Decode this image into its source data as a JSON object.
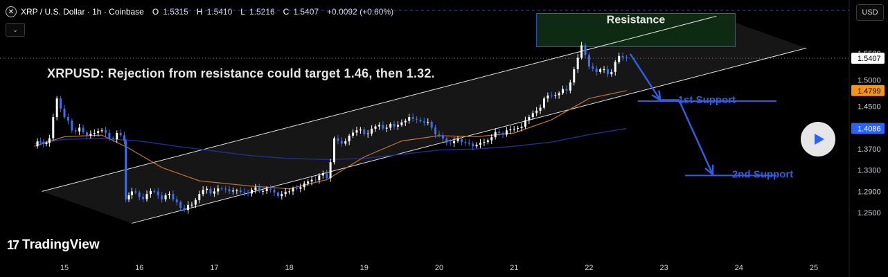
{
  "header": {
    "symbol_title": "XRP / U.S. Dollar · 1h · Coinbase",
    "open_label": "O",
    "open": "1.5315",
    "high_label": "H",
    "high": "1.5410",
    "low_label": "L",
    "low": "1.5216",
    "close_label": "C",
    "close": "1.5407",
    "change": "+0.0092 (+0.60%)"
  },
  "currency_button": "USD",
  "logo_text": "TradingView",
  "annotation": "XRPUSD: Rejection from resistance could target 1.46, then 1.32.",
  "colors": {
    "background": "#000000",
    "candle": "#3f6fe8",
    "ema_short": "#c0752e",
    "ema_long": "#1c2d8a",
    "annotation": "#2f5ee0",
    "resistance_box": "#0f2a12"
  },
  "chart_data": {
    "type": "candlestick",
    "x_ticks": [
      "15",
      "16",
      "17",
      "18",
      "19",
      "20",
      "21",
      "22",
      "23",
      "24",
      "25"
    ],
    "y_ticks": [
      "1.5500",
      "1.5000",
      "1.4500",
      "1.3700",
      "1.3300",
      "1.2900",
      "1.2500"
    ],
    "ylim": [
      1.22,
      1.59
    ],
    "price_tags": [
      {
        "value": 1.5407,
        "label": "1.5407",
        "kind": "last",
        "bg": "#ffffff",
        "fg": "#000000"
      },
      {
        "value": 1.4799,
        "label": "1.4799",
        "kind": "ema_short",
        "bg": "#f7931a",
        "fg": "#000000"
      },
      {
        "value": 1.4086,
        "label": "1.4086",
        "kind": "ema_long",
        "bg": "#2962ff",
        "fg": "#ffffff"
      }
    ],
    "close_path": [
      [
        14.6,
        1.375
      ],
      [
        14.8,
        1.39
      ],
      [
        14.9,
        1.465
      ],
      [
        15.0,
        1.43
      ],
      [
        15.1,
        1.405
      ],
      [
        15.2,
        1.41
      ],
      [
        15.3,
        1.395
      ],
      [
        15.4,
        1.4
      ],
      [
        15.5,
        1.405
      ],
      [
        15.6,
        1.39
      ],
      [
        15.7,
        1.4
      ],
      [
        15.8,
        1.385
      ],
      [
        15.82,
        1.275
      ],
      [
        15.9,
        1.29
      ],
      [
        16.0,
        1.28
      ],
      [
        16.1,
        1.285
      ],
      [
        16.2,
        1.29
      ],
      [
        16.3,
        1.275
      ],
      [
        16.4,
        1.285
      ],
      [
        16.5,
        1.27
      ],
      [
        16.6,
        1.255
      ],
      [
        16.7,
        1.265
      ],
      [
        16.8,
        1.285
      ],
      [
        16.9,
        1.295
      ],
      [
        17.0,
        1.29
      ],
      [
        17.1,
        1.295
      ],
      [
        17.2,
        1.29
      ],
      [
        17.3,
        1.292
      ],
      [
        17.4,
        1.288
      ],
      [
        17.5,
        1.293
      ],
      [
        17.6,
        1.29
      ],
      [
        17.7,
        1.295
      ],
      [
        17.8,
        1.288
      ],
      [
        17.9,
        1.285
      ],
      [
        18.0,
        1.29
      ],
      [
        18.1,
        1.295
      ],
      [
        18.2,
        1.305
      ],
      [
        18.3,
        1.312
      ],
      [
        18.4,
        1.32
      ],
      [
        18.5,
        1.315
      ],
      [
        18.55,
        1.345
      ],
      [
        18.6,
        1.39
      ],
      [
        18.7,
        1.38
      ],
      [
        18.8,
        1.395
      ],
      [
        18.9,
        1.405
      ],
      [
        19.0,
        1.398
      ],
      [
        19.1,
        1.408
      ],
      [
        19.2,
        1.415
      ],
      [
        19.3,
        1.41
      ],
      [
        19.4,
        1.412
      ],
      [
        19.5,
        1.42
      ],
      [
        19.6,
        1.43
      ],
      [
        19.7,
        1.425
      ],
      [
        19.8,
        1.42
      ],
      [
        19.9,
        1.41
      ],
      [
        20.0,
        1.395
      ],
      [
        20.1,
        1.382
      ],
      [
        20.2,
        1.385
      ],
      [
        20.3,
        1.383
      ],
      [
        20.4,
        1.38
      ],
      [
        20.5,
        1.378
      ],
      [
        20.6,
        1.383
      ],
      [
        20.7,
        1.392
      ],
      [
        20.8,
        1.4
      ],
      [
        20.9,
        1.405
      ],
      [
        21.0,
        1.408
      ],
      [
        21.1,
        1.412
      ],
      [
        21.2,
        1.43
      ],
      [
        21.3,
        1.442
      ],
      [
        21.4,
        1.465
      ],
      [
        21.5,
        1.47
      ],
      [
        21.6,
        1.475
      ],
      [
        21.7,
        1.48
      ],
      [
        21.8,
        1.52
      ],
      [
        21.9,
        1.565
      ],
      [
        22.0,
        1.525
      ],
      [
        22.1,
        1.515
      ],
      [
        22.2,
        1.52
      ],
      [
        22.3,
        1.515
      ],
      [
        22.4,
        1.545
      ],
      [
        22.5,
        1.541
      ]
    ],
    "ema_short": [
      [
        14.6,
        1.375
      ],
      [
        15.0,
        1.393
      ],
      [
        15.5,
        1.396
      ],
      [
        15.85,
        1.372
      ],
      [
        16.3,
        1.335
      ],
      [
        16.8,
        1.31
      ],
      [
        17.5,
        1.3
      ],
      [
        18.0,
        1.295
      ],
      [
        18.5,
        1.312
      ],
      [
        19.0,
        1.355
      ],
      [
        19.5,
        1.385
      ],
      [
        20.0,
        1.395
      ],
      [
        20.5,
        1.393
      ],
      [
        21.0,
        1.4
      ],
      [
        21.5,
        1.425
      ],
      [
        22.0,
        1.465
      ],
      [
        22.5,
        1.4799
      ]
    ],
    "ema_long": [
      [
        14.6,
        1.38
      ],
      [
        15.0,
        1.388
      ],
      [
        15.5,
        1.39
      ],
      [
        16.0,
        1.385
      ],
      [
        16.5,
        1.375
      ],
      [
        17.0,
        1.366
      ],
      [
        17.5,
        1.357
      ],
      [
        18.0,
        1.352
      ],
      [
        18.5,
        1.35
      ],
      [
        19.0,
        1.352
      ],
      [
        19.5,
        1.36
      ],
      [
        20.0,
        1.368
      ],
      [
        20.5,
        1.37
      ],
      [
        21.0,
        1.375
      ],
      [
        21.5,
        1.383
      ],
      [
        22.0,
        1.397
      ],
      [
        22.5,
        1.4086
      ]
    ],
    "channel_upper": [
      [
        14.7,
        1.29
      ],
      [
        23.7,
        1.62
      ]
    ],
    "channel_lower": [
      [
        15.9,
        1.23
      ],
      [
        24.9,
        1.56
      ]
    ],
    "resistance_zone": {
      "label": "Resistance",
      "x_range": [
        21.3,
        23.95
      ],
      "y_range": [
        1.5625,
        1.625
      ]
    },
    "supports": [
      {
        "label": "1st Support",
        "value": 1.46,
        "x_range": [
          22.65,
          24.5
        ]
      },
      {
        "label": "2nd Support",
        "value": 1.32,
        "x_range": [
          23.28,
          24.5
        ]
      }
    ],
    "projection": [
      [
        22.55,
        1.549
      ],
      [
        22.95,
        1.462
      ],
      [
        23.2,
        1.462
      ],
      [
        23.65,
        1.322
      ]
    ]
  }
}
